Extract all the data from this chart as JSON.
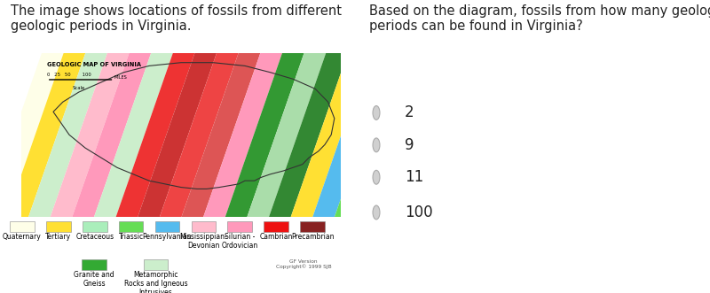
{
  "left_title": "The image shows locations of fossils from different\ngeologic periods in Virginia.",
  "right_title": "Based on the diagram, fossils from how many geologic\nperiods can be found in Virginia?",
  "choices": [
    "2",
    "9",
    "11",
    "100"
  ],
  "legend_row1": [
    {
      "label": "Quaternary",
      "color": "#FEFEE8"
    },
    {
      "label": "Tertiary",
      "color": "#FFE033"
    },
    {
      "label": "Cretaceous",
      "color": "#AAEEBB"
    },
    {
      "label": "Triassic",
      "color": "#66DD55"
    },
    {
      "label": "Pennsylvanian",
      "color": "#55BBEE"
    },
    {
      "label": "Mississippian-\nDevonian",
      "color": "#FFBBCC"
    },
    {
      "label": "Silurian -\nOrdovician",
      "color": "#FF99BB"
    },
    {
      "label": "Cambrian",
      "color": "#EE1111"
    },
    {
      "label": "Precambrian",
      "color": "#882222"
    }
  ],
  "legend_row2": [
    {
      "label": "Granite and\nGneiss",
      "color": "#33AA33"
    },
    {
      "label": "Metamorphic\nRocks and Igneous\nIntrusives",
      "color": "#CCEECC"
    }
  ],
  "map_title": "GEOLOGIC MAP OF VIRGINIA",
  "copyright_text": "GF Version\nCopyright© 1999 SJB",
  "background_color": "#ffffff",
  "radio_fill": "#d0d0d0",
  "radio_edge": "#aaaaaa",
  "text_color": "#222222",
  "title_fontsize": 10.5,
  "choice_fontsize": 12,
  "legend_fontsize": 5.5,
  "map_band_colors": [
    "#FEFEE8",
    "#FFE033",
    "#CCEECC",
    "#FFBBCC",
    "#FF99BB",
    "#CCEECC",
    "#EE3333",
    "#CC3333",
    "#EE4444",
    "#DD5555",
    "#FF99BB",
    "#339933",
    "#AADDAA",
    "#338833",
    "#FFE033",
    "#55BBEE",
    "#66DD55",
    "#FFE033",
    "#F8F8D0"
  ],
  "va_outline_x": [
    1.0,
    1.3,
    1.8,
    2.5,
    3.2,
    4.0,
    5.0,
    6.0,
    7.0,
    7.8,
    8.5,
    9.2,
    9.6,
    9.8,
    9.7,
    9.5,
    9.3,
    9.0,
    8.8,
    8.5,
    8.2,
    7.8,
    7.5,
    7.3,
    7.0,
    6.8,
    6.5,
    6.2,
    5.8,
    5.5,
    5.0,
    4.5,
    4.0,
    3.5,
    3.0,
    2.5,
    2.0,
    1.5,
    1.0
  ],
  "va_outline_y": [
    3.2,
    3.5,
    3.8,
    4.1,
    4.4,
    4.6,
    4.7,
    4.7,
    4.6,
    4.4,
    4.2,
    3.9,
    3.5,
    3.0,
    2.5,
    2.2,
    2.0,
    1.8,
    1.6,
    1.5,
    1.4,
    1.3,
    1.2,
    1.1,
    1.1,
    1.0,
    0.95,
    0.9,
    0.85,
    0.85,
    0.9,
    1.0,
    1.1,
    1.3,
    1.5,
    1.8,
    2.1,
    2.5,
    3.2
  ]
}
